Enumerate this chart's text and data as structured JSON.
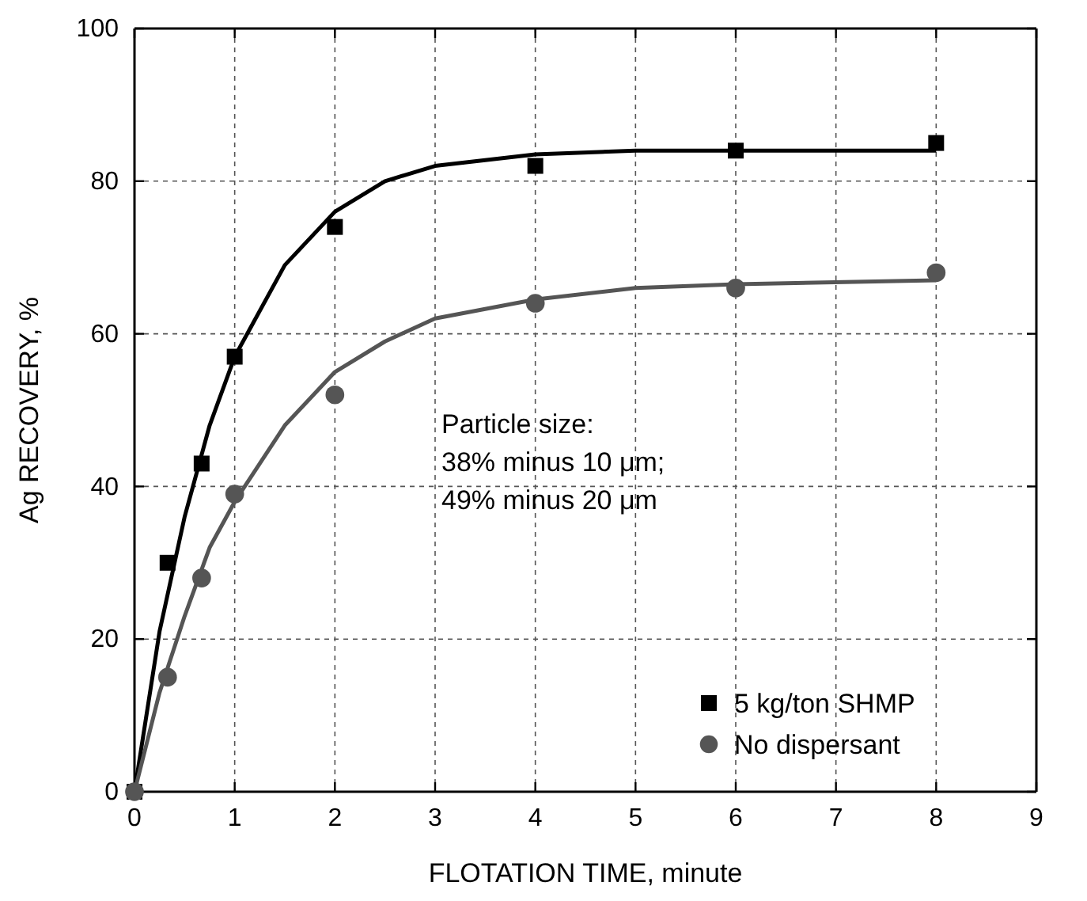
{
  "chart_data": {
    "type": "scatter",
    "xlabel": "FLOTATION TIME, minute",
    "ylabel": "Ag RECOVERY, %",
    "xlim": [
      0,
      9
    ],
    "ylim": [
      0,
      100
    ],
    "xticks": [
      0,
      1,
      2,
      3,
      4,
      5,
      6,
      7,
      8,
      9
    ],
    "yticks": [
      0,
      20,
      40,
      60,
      80,
      100
    ],
    "grid": true,
    "legend": "bottom right",
    "annotations": [
      "Particle size:",
      "38% minus 10 μm;",
      "49% minus 20 μm"
    ],
    "series": [
      {
        "name": "5 kg/ton SHMP",
        "color": "#000000",
        "marker": "square",
        "x": [
          0,
          0.33,
          0.67,
          1,
          2,
          4,
          6,
          8
        ],
        "values": [
          0,
          30,
          43,
          57,
          74,
          82,
          84,
          85
        ]
      },
      {
        "name": "No dispersant",
        "color": "#555555",
        "marker": "circle",
        "x": [
          0,
          0.33,
          0.67,
          1,
          2,
          4,
          6,
          8
        ],
        "values": [
          0,
          15,
          28,
          39,
          52,
          64,
          66,
          68
        ]
      },
      {
        "type": "line",
        "color": "#000000",
        "marker": "none",
        "line_style": "solid",
        "x": [
          0,
          0.25,
          0.5,
          0.75,
          1,
          1.5,
          2,
          2.5,
          3,
          4,
          5,
          6,
          8
        ],
        "values": [
          0,
          21,
          36,
          48,
          57,
          69,
          76,
          80,
          82,
          83.5,
          84,
          84,
          84
        ]
      },
      {
        "type": "line",
        "color": "#555555",
        "marker": "none",
        "line_style": "solid",
        "x": [
          0,
          0.25,
          0.5,
          0.75,
          1,
          1.5,
          2,
          2.5,
          3,
          4,
          5,
          6,
          8
        ],
        "values": [
          0,
          13,
          23,
          32,
          38,
          48,
          55,
          59,
          62,
          64.5,
          66,
          66.5,
          67
        ]
      }
    ]
  }
}
